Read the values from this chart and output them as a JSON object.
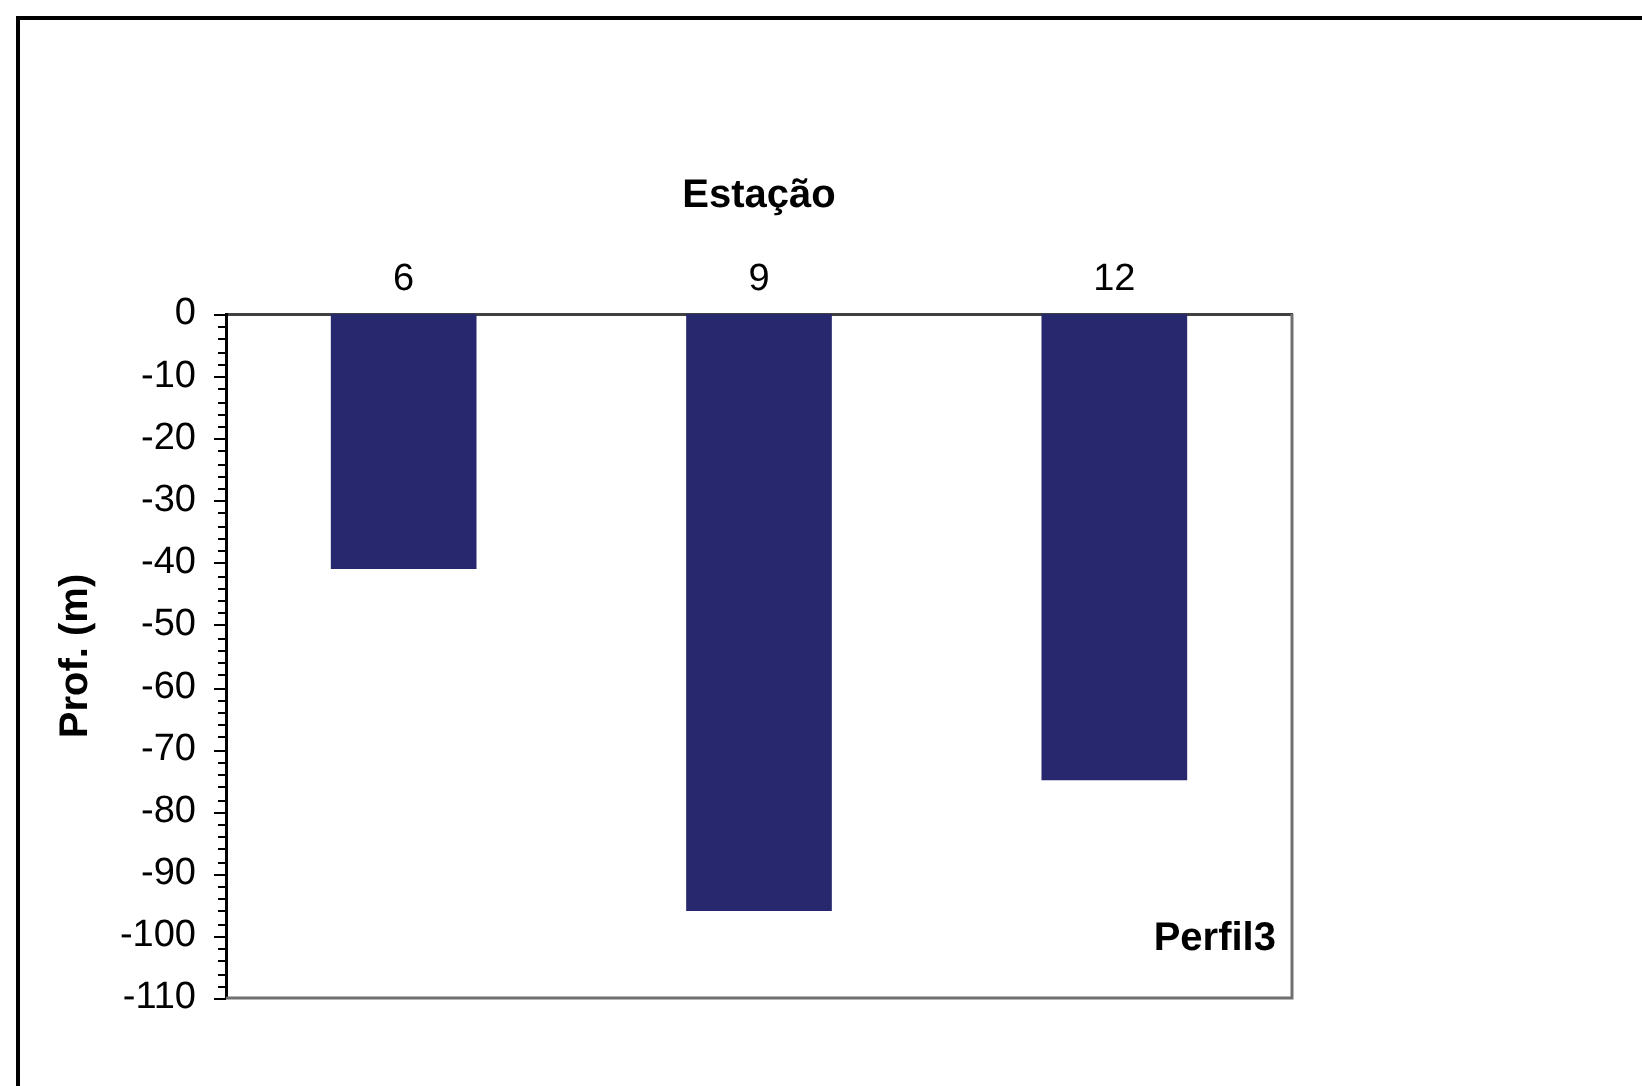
{
  "chart_data": {
    "type": "bar",
    "xlabel": "Estação",
    "ylabel": "Prof. (m)",
    "categories": [
      "6",
      "9",
      "12"
    ],
    "values": [
      -41,
      -96,
      -75
    ],
    "color": "#28286f",
    "ylim": [
      -110,
      0
    ],
    "yticks": [
      0,
      {
        "value": -2,
        "label": null
      },
      {
        "value": -4,
        "label": null
      },
      {
        "value": -6,
        "label": null
      },
      {
        "value": -8,
        "label": null
      },
      -10,
      {
        "value": -12,
        "label": null
      },
      {
        "value": -14,
        "label": null
      },
      {
        "value": -16,
        "label": null
      },
      {
        "value": -18,
        "label": null
      },
      -20,
      {
        "value": -22,
        "label": null
      },
      {
        "value": -24,
        "label": null
      },
      {
        "value": -26,
        "label": null
      },
      {
        "value": -28,
        "label": null
      },
      -30,
      {
        "value": -32,
        "label": null
      },
      {
        "value": -34,
        "label": null
      },
      {
        "value": -36,
        "label": null
      },
      {
        "value": -38,
        "label": null
      },
      -40,
      {
        "value": -42,
        "label": null
      },
      {
        "value": -44,
        "label": null
      },
      {
        "value": -46,
        "label": null
      },
      {
        "value": -48,
        "label": null
      },
      -50,
      {
        "value": -52,
        "label": null
      },
      {
        "value": -54,
        "label": null
      },
      {
        "value": -56,
        "label": null
      },
      {
        "value": -58,
        "label": null
      },
      -60,
      {
        "value": -62,
        "label": null
      },
      {
        "value": -64,
        "label": null
      },
      {
        "value": -66,
        "label": null
      },
      {
        "value": -68,
        "label": null
      },
      -70,
      {
        "value": -72,
        "label": null
      },
      {
        "value": -74,
        "label": null
      },
      {
        "value": -76,
        "label": null
      },
      {
        "value": -78,
        "label": null
      },
      -80,
      {
        "value": -82,
        "label": null
      },
      {
        "value": -84,
        "label": null
      },
      {
        "value": -86,
        "label": null
      },
      {
        "value": -88,
        "label": null
      },
      -90,
      {
        "value": -92,
        "label": null
      },
      {
        "value": -94,
        "label": null
      },
      {
        "value": -96,
        "label": null
      },
      {
        "value": -98,
        "label": null
      },
      -100,
      {
        "value": -102,
        "label": null
      },
      {
        "value": -104,
        "label": null
      },
      {
        "value": -106,
        "label": null
      },
      {
        "value": -108,
        "label": null
      },
      -110
    ],
    "annotations": [
      "Perfil3"
    ]
  }
}
